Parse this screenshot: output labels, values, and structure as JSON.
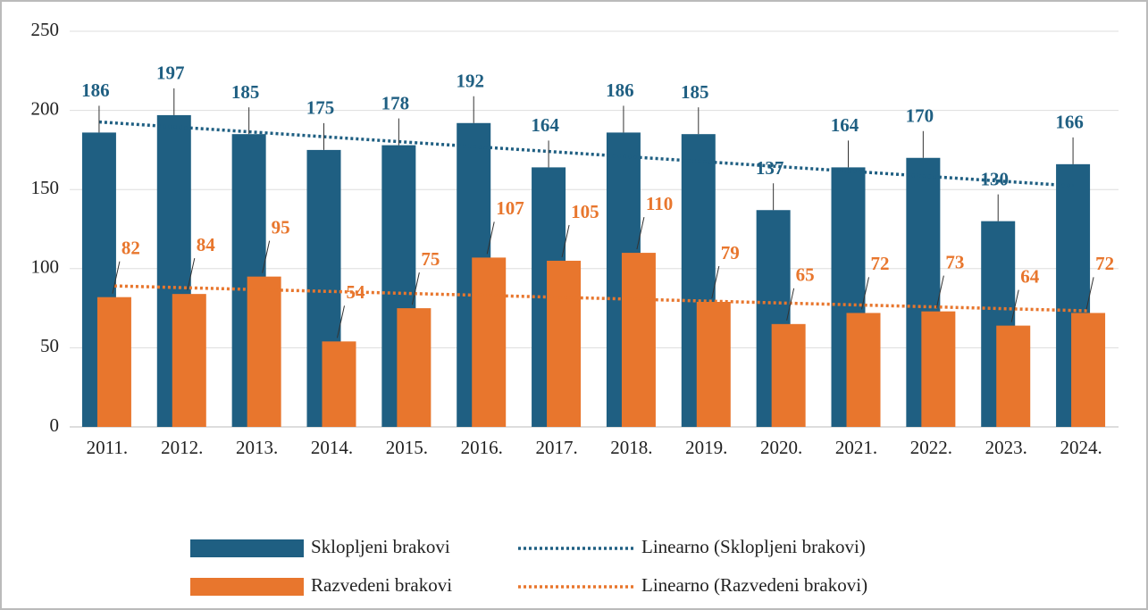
{
  "chart_data": {
    "type": "bar",
    "categories": [
      "2011.",
      "2012.",
      "2013.",
      "2014.",
      "2015.",
      "2016.",
      "2017.",
      "2018.",
      "2019.",
      "2020.",
      "2021.",
      "2022.",
      "2023.",
      "2024."
    ],
    "series": [
      {
        "name": "Sklopljeni brakovi",
        "color": "#1f5f82",
        "values": [
          186,
          197,
          185,
          175,
          178,
          192,
          164,
          186,
          185,
          137,
          164,
          170,
          130,
          166
        ]
      },
      {
        "name": "Razvedeni brakovi",
        "color": "#e8762d",
        "values": [
          82,
          84,
          95,
          54,
          75,
          107,
          105,
          110,
          79,
          65,
          72,
          73,
          64,
          72
        ]
      }
    ],
    "trendlines": [
      {
        "name": "Linearno (Sklopljeni brakovi)",
        "series": 0,
        "color": "#1f5f82"
      },
      {
        "name": "Linearno (Razvedeni brakovi)",
        "series": 1,
        "color": "#e8762d"
      }
    ],
    "ylim": [
      0,
      250
    ],
    "yticks": [
      0,
      50,
      100,
      150,
      200,
      250
    ],
    "grid": true
  }
}
